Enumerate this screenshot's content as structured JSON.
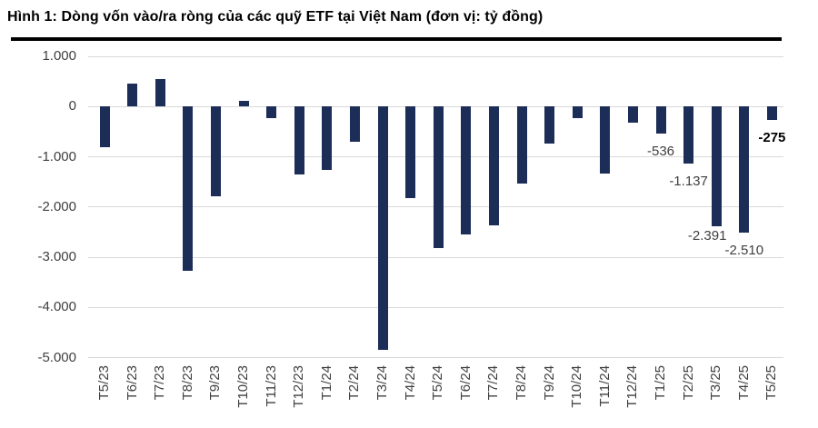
{
  "figure": {
    "title": "Hình 1: Dòng vốn vào/ra ròng của các quỹ ETF tại Việt Nam (đơn vị: tỷ đồng)"
  },
  "chart_data": {
    "type": "bar",
    "title": "Hình 1: Dòng vốn vào/ra ròng của các quỹ ETF tại Việt Nam",
    "unit": "tỷ đồng",
    "xlabel": "",
    "ylabel": "",
    "ylim": [
      -5000,
      1000
    ],
    "grid": "horizontal",
    "legend": "none",
    "bar_color": "#1c2d58",
    "gridline_color": "#d9d9d9",
    "axis_text_color": "#404040",
    "categories": [
      "T5/23",
      "T6/23",
      "T7/23",
      "T8/23",
      "T9/23",
      "T10/23",
      "T11/23",
      "T12/23",
      "T1/24",
      "T2/24",
      "T3/24",
      "T4/24",
      "T5/24",
      "T6/24",
      "T7/24",
      "T8/24",
      "T9/24",
      "T10/24",
      "T11/24",
      "T12/24",
      "T1/25",
      "T2/25",
      "T3/25",
      "T4/25",
      "T5/25"
    ],
    "values": [
      -810,
      465,
      545,
      -3270,
      -1790,
      105,
      -230,
      -1355,
      -1270,
      -710,
      -4840,
      -1815,
      -2820,
      -2540,
      -2360,
      -1540,
      -730,
      -230,
      -1340,
      -330,
      -536,
      -1137,
      -2391,
      -2510,
      -275
    ],
    "y_ticks": [
      {
        "value": 1000,
        "label": "1.000"
      },
      {
        "value": 0,
        "label": "0"
      },
      {
        "value": -1000,
        "label": "-1.000"
      },
      {
        "value": -2000,
        "label": "-2.000"
      },
      {
        "value": -3000,
        "label": "-3.000"
      },
      {
        "value": -4000,
        "label": "-4.000"
      },
      {
        "value": -5000,
        "label": "-5.000"
      }
    ],
    "data_labels": [
      {
        "category": "T1/25",
        "text": "-536",
        "bold": false
      },
      {
        "category": "T2/25",
        "text": "-1.137",
        "bold": false
      },
      {
        "category": "T3/25",
        "text": "-2.391",
        "bold": false
      },
      {
        "category": "T4/25",
        "text": "-2.510",
        "bold": false
      },
      {
        "category": "T5/25",
        "text": "-275",
        "bold": true
      }
    ]
  }
}
